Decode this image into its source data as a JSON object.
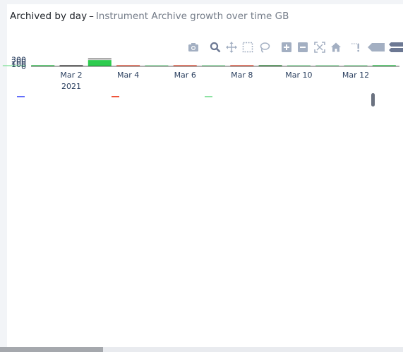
{
  "header": {
    "title": "Archived by day",
    "separator": "–",
    "subtitle": "Instrument Archive growth over time GB"
  },
  "modebar": {
    "buttons": [
      {
        "name": "download-plot",
        "icon": "camera-icon"
      },
      {
        "name": "zoom",
        "icon": "zoom-icon"
      },
      {
        "name": "pan",
        "icon": "pan-icon"
      },
      {
        "name": "box-select",
        "icon": "box-select-icon"
      },
      {
        "name": "lasso-select",
        "icon": "lasso-icon"
      },
      {
        "name": "zoom-in",
        "icon": "zoom-in-icon"
      },
      {
        "name": "zoom-out",
        "icon": "zoom-out-icon"
      },
      {
        "name": "autoscale",
        "icon": "autoscale-icon"
      },
      {
        "name": "reset-axes",
        "icon": "home-icon"
      },
      {
        "name": "toggle-spike-lines",
        "icon": "spike-lines-icon"
      },
      {
        "name": "show-closest",
        "icon": "hover-closest-icon"
      },
      {
        "name": "compare-hover",
        "icon": "hover-compare-icon"
      }
    ]
  },
  "colors": {
    "modebar_icon": "#a3afc2",
    "modebar_active": "#6c7893",
    "axis_text": "#2a3f5f",
    "series_blue": "#636efa",
    "series_red": "#ef553b",
    "series_green": "#00cc96",
    "bar_light": "#8de2a3",
    "bar_strong": "#2ecc4f"
  },
  "legend": [
    {
      "name": "",
      "color": "#636efa"
    },
    {
      "name": "",
      "color": "#ef553b"
    },
    {
      "name": "",
      "color": "#8de2a3"
    }
  ],
  "chart_data": {
    "type": "bar",
    "title": "Instrument Archive growth over time GB",
    "xlabel": "",
    "ylabel": "",
    "ylim": [
      0,
      300
    ],
    "y_tick_labels": [
      "300",
      "200",
      "100",
      "0"
    ],
    "x_tick_labels": [
      {
        "label": "Mar 2",
        "sublabel": "2021"
      },
      {
        "label": "Mar 4",
        "sublabel": ""
      },
      {
        "label": "Mar 6",
        "sublabel": ""
      },
      {
        "label": "Mar 8",
        "sublabel": ""
      },
      {
        "label": "Mar 10",
        "sublabel": ""
      },
      {
        "label": "Mar 12",
        "sublabel": ""
      }
    ],
    "categories": [
      "Feb 28",
      "Mar 1",
      "Mar 2",
      "Mar 3",
      "Mar 4",
      "Mar 5",
      "Mar 6",
      "Mar 7",
      "Mar 8",
      "Mar 9",
      "Mar 10",
      "Mar 11",
      "Mar 12",
      "Mar 13"
    ],
    "x_day_offsets": [
      -2,
      -1,
      0,
      1,
      2,
      3,
      4,
      5,
      6,
      7,
      8,
      9,
      10,
      11
    ],
    "values": [
      20,
      10,
      10,
      280,
      10,
      25,
      15,
      20,
      15,
      30,
      20,
      15,
      30,
      20
    ],
    "bar_colors": [
      "#8de2a3",
      "#2ecc4f",
      "#3b3b3b",
      "#2ecc4f",
      "#ef553b",
      "#8de2a3",
      "#ef553b",
      "#8de2a3",
      "#ef553b",
      "#2e8b3a",
      "#8de2a3",
      "#8de2a3",
      "#8de2a3",
      "#2ecc4f"
    ],
    "series": [
      {
        "name": "",
        "color": "#636efa"
      },
      {
        "name": "",
        "color": "#ef553b"
      },
      {
        "name": "",
        "color": "#8de2a3"
      }
    ]
  }
}
